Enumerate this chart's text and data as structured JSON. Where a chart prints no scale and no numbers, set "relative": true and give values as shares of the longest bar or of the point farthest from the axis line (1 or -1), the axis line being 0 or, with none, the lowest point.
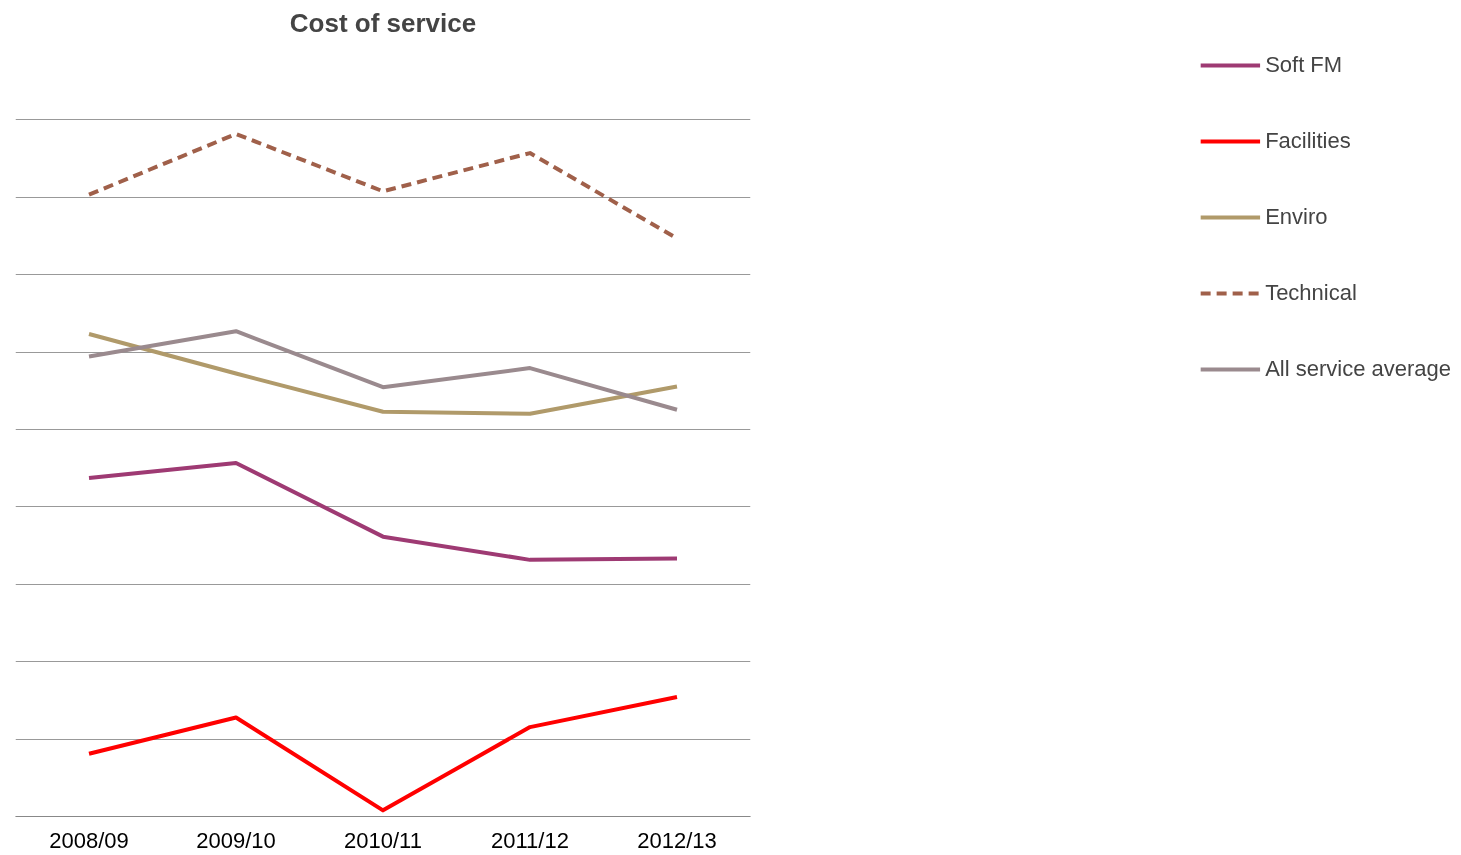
{
  "chart_data": {
    "type": "line",
    "title": "Cost of service",
    "relative": true,
    "grid": "y",
    "legend": "right",
    "categories": [
      "2008/09",
      "2009/10",
      "2010/11",
      "2011/12",
      "2012/13"
    ],
    "series": [
      {
        "name": "Soft FM",
        "color": "#9e3a73",
        "values": [
          0.496,
          0.518,
          0.41,
          0.376,
          0.378
        ]
      },
      {
        "name": "Facilities",
        "color": "#ff0000",
        "values": [
          0.092,
          0.145,
          0.009,
          0.131,
          0.175
        ]
      },
      {
        "name": "Enviro",
        "color": "#b09a6a",
        "values": [
          0.707,
          0.649,
          0.593,
          0.59,
          0.63
        ]
      },
      {
        "name": "Technical",
        "color": "#a0604a",
        "line_style": "dashed",
        "values": [
          0.911,
          1,
          0.916,
          0.972,
          0.847
        ]
      },
      {
        "name": "All service average",
        "color": "#9a8a8e",
        "values": [
          0.674,
          0.711,
          0.629,
          0.657,
          0.596
        ]
      }
    ]
  }
}
